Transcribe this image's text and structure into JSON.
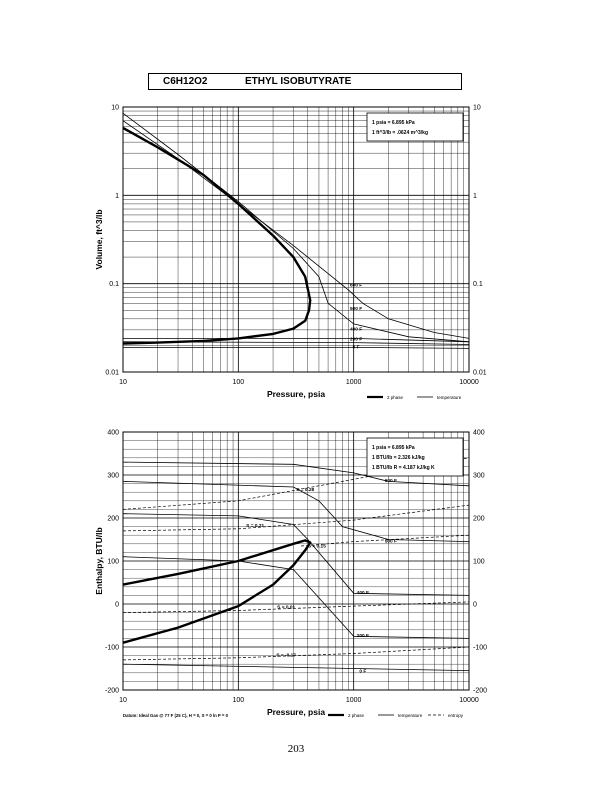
{
  "header": {
    "formula": "C6H12O2",
    "name": "ETHYL ISOBUTYRATE"
  },
  "page_number": "203",
  "chart_data": [
    {
      "type": "line",
      "xscale": "log",
      "yscale": "log",
      "xlim": [
        10,
        10000
      ],
      "ylim": [
        0.01,
        10
      ],
      "xlabel": "Pressure,  psia",
      "ylabel": "Volume, ft^3/lb",
      "x_ticks": [
        "10",
        "100",
        "1000",
        "10000"
      ],
      "y_ticks": [
        "0.01",
        "0.1",
        "1",
        "10"
      ],
      "conversion_box": [
        "1 psia = 6.895 kPa",
        "1 ft^3/lb = .0624 m^3/kg"
      ],
      "legend": [
        "2 phase",
        "temperature"
      ],
      "two_phase": [
        [
          10,
          0.021
        ],
        [
          20,
          0.0215
        ],
        [
          50,
          0.0225
        ],
        [
          100,
          0.024
        ],
        [
          200,
          0.027
        ],
        [
          300,
          0.031
        ],
        [
          380,
          0.038
        ],
        [
          410,
          0.05
        ],
        [
          420,
          0.065
        ],
        [
          380,
          0.12
        ],
        [
          300,
          0.2
        ],
        [
          200,
          0.35
        ],
        [
          100,
          0.8
        ],
        [
          50,
          1.7
        ],
        [
          20,
          3.5
        ],
        [
          10,
          5.8
        ]
      ],
      "isotherms": [
        {
          "label": "600 F",
          "points": [
            [
              10,
              7
            ],
            [
              30,
              2.6
            ],
            [
              100,
              0.8
            ],
            [
              300,
              0.27
            ],
            [
              600,
              0.13
            ],
            [
              900,
              0.085
            ],
            [
              1200,
              0.06
            ],
            [
              2000,
              0.04
            ],
            [
              5000,
              0.028
            ],
            [
              10000,
              0.024
            ]
          ]
        },
        {
          "label": "500 F",
          "points": [
            [
              10,
              8.5
            ],
            [
              30,
              2.9
            ],
            [
              100,
              0.85
            ],
            [
              300,
              0.25
            ],
            [
              500,
              0.12
            ],
            [
              600,
              0.06
            ],
            [
              1000,
              0.035
            ],
            [
              3000,
              0.025
            ],
            [
              10000,
              0.022
            ]
          ]
        },
        {
          "label": "400 F",
          "points": [
            [
              10,
              0.024
            ],
            [
              1000,
              0.024
            ],
            [
              10000,
              0.022
            ]
          ]
        },
        {
          "label": "200 F",
          "points": [
            [
              10,
              0.022
            ],
            [
              1000,
              0.0215
            ],
            [
              10000,
              0.0205
            ]
          ]
        },
        {
          "label": "0 F",
          "points": [
            [
              10,
              0.019
            ],
            [
              1000,
              0.019
            ],
            [
              10000,
              0.0185
            ]
          ]
        }
      ]
    },
    {
      "type": "line",
      "xscale": "log",
      "xlim": [
        10,
        10000
      ],
      "ylim": [
        -200,
        400
      ],
      "xlabel": "Pressure,  psia",
      "ylabel": "Enthalpy, BTU/lb",
      "x_ticks": [
        "10",
        "100",
        "1000",
        "10000"
      ],
      "y_ticks": [
        "-200",
        "-100",
        "0",
        "100",
        "200",
        "300",
        "400"
      ],
      "conversion_box": [
        "1 psia = 6.895 kPa",
        "1 BTU/lb = 2.326 kJ/kg",
        "1 BTU/lb R = 4.187 kJ/kg K"
      ],
      "footnote": "Datum: Ideal Gas @ 77 F (25 C), H = 0, S = 0 ln P = 0",
      "legend": [
        "2 phase",
        "temperature",
        "entropy"
      ],
      "two_phase": [
        [
          10,
          -90
        ],
        [
          30,
          -55
        ],
        [
          100,
          -5
        ],
        [
          200,
          45
        ],
        [
          300,
          90
        ],
        [
          380,
          125
        ],
        [
          420,
          143
        ],
        [
          380,
          148
        ],
        [
          300,
          140
        ],
        [
          100,
          100
        ],
        [
          30,
          70
        ],
        [
          10,
          45
        ]
      ],
      "isotherms": [
        {
          "label": "600 F",
          "points": [
            [
              10,
              330
            ],
            [
              300,
              325
            ],
            [
              1000,
              305
            ],
            [
              2000,
              285
            ],
            [
              10000,
              275
            ]
          ]
        },
        {
          "label": "500 F",
          "points": [
            [
              10,
              285
            ],
            [
              300,
              272
            ],
            [
              500,
              240
            ],
            [
              800,
              180
            ],
            [
              2000,
              150
            ],
            [
              10000,
              145
            ]
          ]
        },
        {
          "label": "400 F",
          "points": [
            [
              10,
              210
            ],
            [
              100,
              205
            ],
            [
              300,
              185
            ],
            [
              400,
              150
            ],
            [
              1000,
              25
            ],
            [
              10000,
              20
            ]
          ]
        },
        {
          "label": "200 F",
          "points": [
            [
              10,
              110
            ],
            [
              100,
              100
            ],
            [
              300,
              80
            ],
            [
              1000,
              -75
            ],
            [
              10000,
              -80
            ]
          ]
        },
        {
          "label": "0 F",
          "points": [
            [
              10,
              -140
            ],
            [
              1000,
              -150
            ],
            [
              10000,
              -155
            ]
          ]
        }
      ],
      "entropy_lines": [
        {
          "label": "S = 0.28",
          "points": [
            [
              10,
              220
            ],
            [
              100,
              240
            ],
            [
              1000,
              290
            ],
            [
              10000,
              340
            ]
          ]
        },
        {
          "label": "S = 0.21",
          "points": [
            [
              10,
              170
            ],
            [
              100,
              175
            ],
            [
              1000,
              195
            ],
            [
              10000,
              230
            ]
          ]
        },
        {
          "label": "S = 0.15",
          "points": [
            [
              350,
              135
            ],
            [
              1000,
              145
            ],
            [
              10000,
              160
            ]
          ]
        },
        {
          "label": "S = 0.01",
          "points": [
            [
              10,
              -20
            ],
            [
              100,
              -15
            ],
            [
              1000,
              -5
            ],
            [
              10000,
              5
            ]
          ]
        },
        {
          "label": "S = -0.17",
          "points": [
            [
              10,
              -130
            ],
            [
              100,
              -125
            ],
            [
              1000,
              -115
            ],
            [
              10000,
              -100
            ]
          ]
        }
      ]
    }
  ]
}
